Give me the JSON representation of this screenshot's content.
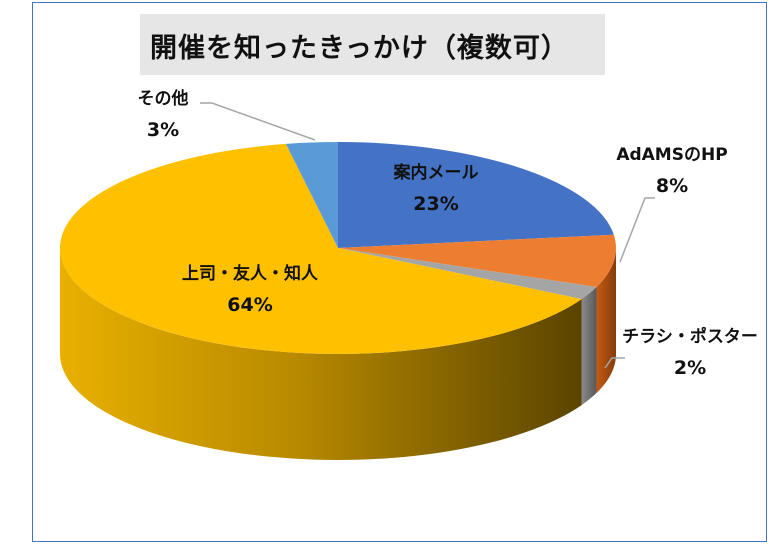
{
  "chart_data": {
    "type": "pie",
    "style": "3d",
    "title": "開催を知ったきっかけ（複数可）",
    "start": "12 o'clock, clockwise",
    "slices": [
      {
        "label": "案内メール",
        "value": 23,
        "display": "23%",
        "color": "#4472c4"
      },
      {
        "label": "AdAMSのHP",
        "value": 8,
        "display": "8%",
        "color": "#ed7d31"
      },
      {
        "label": "チラシ・ポスター",
        "value": 2,
        "display": "2%",
        "color": "#a5a5a5"
      },
      {
        "label": "上司・友人・知人",
        "value": 64,
        "display": "64%",
        "color": "#ffc000"
      },
      {
        "label": "その他",
        "value": 3,
        "display": "3%",
        "color": "#5b9bd5"
      }
    ],
    "border_color": "#4472c4",
    "title_bg": "#e7e6e6"
  }
}
